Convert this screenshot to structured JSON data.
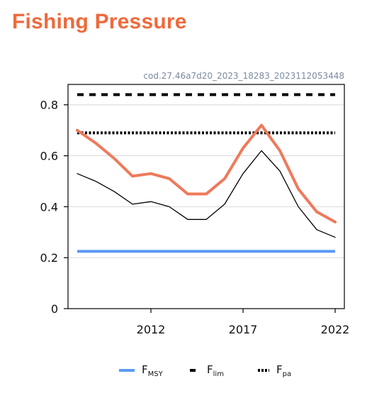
{
  "page": {
    "title": "Fishing Pressure"
  },
  "chart_data": {
    "type": "line",
    "annotation": "cod.27.46a7d20_2023_18283_2023112053448",
    "xlabel": "",
    "ylabel": "",
    "xlim": [
      2007.5,
      2022.5
    ],
    "ylim": [
      0,
      0.88
    ],
    "xticks": [
      2012,
      2017,
      2022
    ],
    "yticks": [
      0,
      0.2,
      0.4,
      0.6,
      0.8
    ],
    "ytick_labels": [
      "0",
      "0.2",
      "0.4",
      "0.6",
      "0.8"
    ],
    "grid": {
      "horizontal": true,
      "vertical": false
    },
    "series": [
      {
        "color": "#ee7a5c",
        "x": [
          2008,
          2009,
          2010,
          2011,
          2012,
          2013,
          2014,
          2015,
          2016,
          2017,
          2018,
          2019,
          2020,
          2021,
          2022
        ],
        "values": [
          0.7,
          0.65,
          0.59,
          0.52,
          0.53,
          0.51,
          0.45,
          0.45,
          0.51,
          0.63,
          0.72,
          0.62,
          0.47,
          0.38,
          0.34
        ]
      },
      {
        "color": "#000000",
        "x": [
          2008,
          2009,
          2010,
          2011,
          2012,
          2013,
          2014,
          2015,
          2016,
          2017,
          2018,
          2019,
          2020,
          2021,
          2022
        ],
        "values": [
          0.53,
          0.5,
          0.46,
          0.41,
          0.42,
          0.4,
          0.35,
          0.35,
          0.41,
          0.53,
          0.62,
          0.54,
          0.4,
          0.31,
          0.28
        ]
      }
    ],
    "reference_lines": [
      {
        "name": "F",
        "subscript": "MSY",
        "value": 0.225,
        "style": "solid",
        "color": "#5b9af5"
      },
      {
        "name": "F",
        "subscript": "lim",
        "value": 0.84,
        "style": "dashed",
        "color": "#000000"
      },
      {
        "name": "F",
        "subscript": "pa",
        "value": 0.69,
        "style": "dotted",
        "color": "#000000"
      }
    ],
    "legend_position": "bottom"
  }
}
